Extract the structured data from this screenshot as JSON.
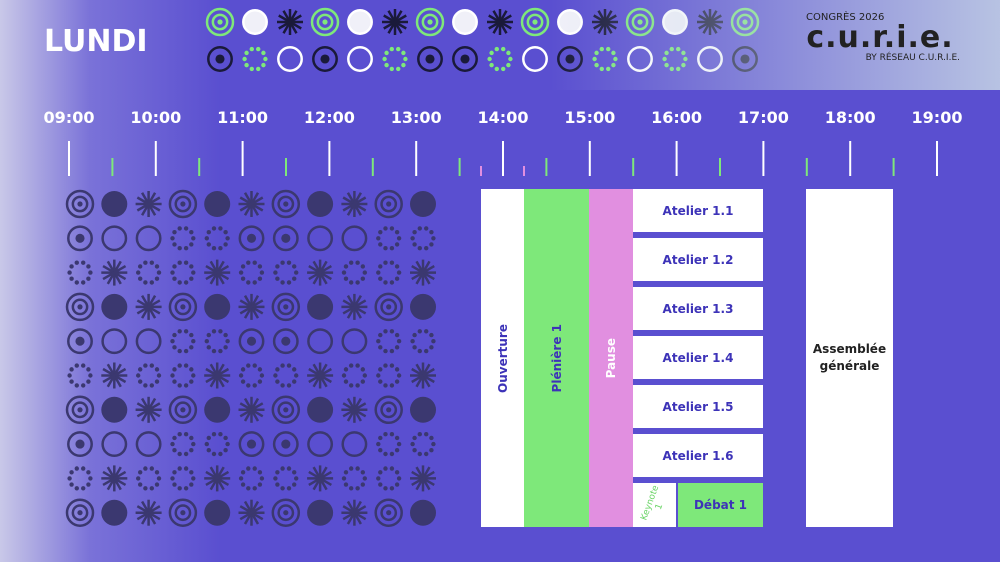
{
  "header": {
    "day": "LUNDI",
    "logo": {
      "top": "CONGRÈS 2026",
      "name": "c.u.r.i.e.",
      "bottom": "BY RÉSEAU C.U.R.I.E."
    }
  },
  "timeline": {
    "hours": [
      "09:00",
      "10:00",
      "11:00",
      "12:00",
      "13:00",
      "14:00",
      "15:00",
      "16:00",
      "17:00",
      "18:00",
      "19:00"
    ]
  },
  "events": [
    {
      "label": "Ouverture"
    },
    {
      "label": "Plénière 1"
    },
    {
      "label": "Pause"
    },
    {
      "label": "Atelier 1.1"
    },
    {
      "label": "Atelier 1.2"
    },
    {
      "label": "Atelier 1.3"
    },
    {
      "label": "Atelier 1.4"
    },
    {
      "label": "Atelier 1.5"
    },
    {
      "label": "Atelier 1.6"
    },
    {
      "label": "Keynote 1"
    },
    {
      "label": "Débat 1"
    },
    {
      "label": "Assemblée générale"
    }
  ]
}
